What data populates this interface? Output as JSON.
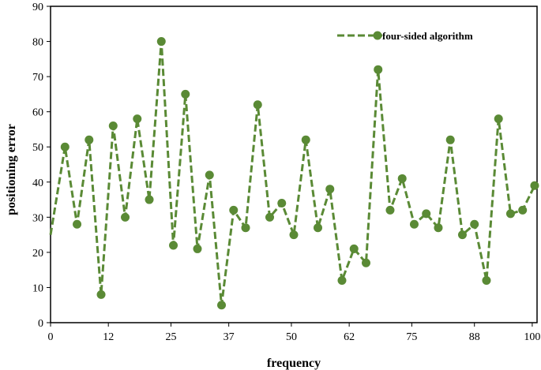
{
  "chart_data": {
    "type": "line",
    "title": "",
    "xlabel": "frequency",
    "ylabel": "positioning  error",
    "xlim": [
      0,
      101
    ],
    "ylim": [
      0,
      90
    ],
    "x_ticks": [
      0,
      12,
      25,
      37,
      50,
      62,
      75,
      88,
      100
    ],
    "y_ticks": [
      0,
      10,
      20,
      30,
      40,
      50,
      60,
      70,
      80,
      90
    ],
    "grid": false,
    "legend_position": "top-right",
    "colors": {
      "series": "#5a8a35"
    },
    "series": [
      {
        "name": "four-sided algorithm",
        "x": [
          0,
          3,
          5.5,
          8,
          10.5,
          13,
          15.5,
          18,
          20.5,
          23,
          25.5,
          28,
          30.5,
          33,
          35.5,
          38,
          40.5,
          43,
          45.5,
          48,
          50.5,
          53,
          55.5,
          58,
          60.5,
          63,
          65.5,
          68,
          70.5,
          73,
          75.5,
          78,
          80.5,
          83,
          85.5,
          88,
          90.5,
          93,
          95.5,
          98,
          100.5
        ],
        "y": [
          25,
          50,
          28,
          52,
          8,
          56,
          30,
          58,
          35,
          80,
          22,
          65,
          21,
          42,
          5,
          32,
          27,
          62,
          30,
          34,
          25,
          52,
          27,
          38,
          12,
          21,
          17,
          72,
          32,
          41,
          28,
          31,
          27,
          52,
          25,
          28,
          12,
          58,
          31,
          32,
          39
        ]
      }
    ]
  }
}
